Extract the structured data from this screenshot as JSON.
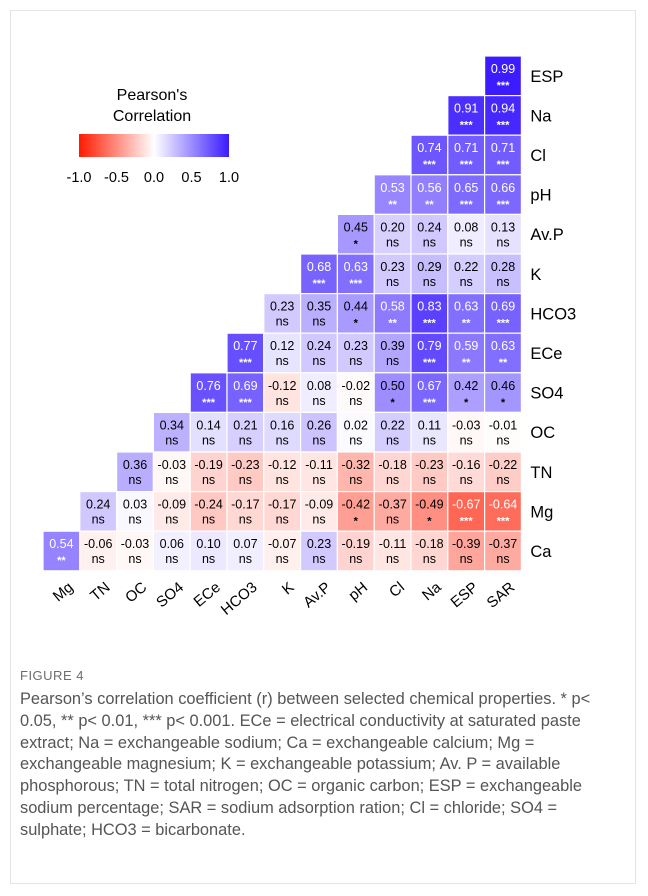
{
  "chart_data": {
    "type": "heatmap",
    "legend": {
      "title_line1": "Pearson's",
      "title_line2": "Correlation",
      "ticks": [
        "-1.0",
        "-0.5",
        "0.0",
        "0.5",
        "1.0"
      ],
      "colors": {
        "negative": "#ff1a00",
        "zero": "#ffffff",
        "positive": "#3a1aff"
      },
      "range": [
        -1.0,
        1.0
      ]
    },
    "columns": [
      "Mg",
      "TN",
      "OC",
      "SO4",
      "ECe",
      "HCO3",
      "K",
      "Av.P",
      "pH",
      "Cl",
      "Na",
      "ESP",
      "SAR"
    ],
    "rows": [
      {
        "label": "ESP",
        "cells": [
          {
            "col": 12,
            "v": "0.99",
            "s": "***"
          }
        ]
      },
      {
        "label": "Na",
        "cells": [
          {
            "col": 11,
            "v": "0.91",
            "s": "***"
          },
          {
            "col": 12,
            "v": "0.94",
            "s": "***"
          }
        ]
      },
      {
        "label": "Cl",
        "cells": [
          {
            "col": 10,
            "v": "0.74",
            "s": "***"
          },
          {
            "col": 11,
            "v": "0.71",
            "s": "***"
          },
          {
            "col": 12,
            "v": "0.71",
            "s": "***"
          }
        ]
      },
      {
        "label": "pH",
        "cells": [
          {
            "col": 9,
            "v": "0.53",
            "s": "**"
          },
          {
            "col": 10,
            "v": "0.56",
            "s": "**"
          },
          {
            "col": 11,
            "v": "0.65",
            "s": "***"
          },
          {
            "col": 12,
            "v": "0.66",
            "s": "***"
          }
        ]
      },
      {
        "label": "Av.P",
        "cells": [
          {
            "col": 8,
            "v": "0.45",
            "s": "*"
          },
          {
            "col": 9,
            "v": "0.20",
            "s": "ns"
          },
          {
            "col": 10,
            "v": "0.24",
            "s": "ns"
          },
          {
            "col": 11,
            "v": "0.08",
            "s": "ns"
          },
          {
            "col": 12,
            "v": "0.13",
            "s": "ns"
          }
        ]
      },
      {
        "label": "K",
        "cells": [
          {
            "col": 7,
            "v": "0.68",
            "s": "***"
          },
          {
            "col": 8,
            "v": "0.63",
            "s": "***"
          },
          {
            "col": 9,
            "v": "0.23",
            "s": "ns"
          },
          {
            "col": 10,
            "v": "0.29",
            "s": "ns"
          },
          {
            "col": 11,
            "v": "0.22",
            "s": "ns"
          },
          {
            "col": 12,
            "v": "0.28",
            "s": "ns"
          }
        ]
      },
      {
        "label": "HCO3",
        "cells": [
          {
            "col": 6,
            "v": "0.23",
            "s": "ns"
          },
          {
            "col": 7,
            "v": "0.35",
            "s": "ns"
          },
          {
            "col": 8,
            "v": "0.44",
            "s": "*"
          },
          {
            "col": 9,
            "v": "0.58",
            "s": "**"
          },
          {
            "col": 10,
            "v": "0.83",
            "s": "***"
          },
          {
            "col": 11,
            "v": "0.63",
            "s": "**"
          },
          {
            "col": 12,
            "v": "0.69",
            "s": "***"
          }
        ]
      },
      {
        "label": "ECe",
        "cells": [
          {
            "col": 5,
            "v": "0.77",
            "s": "***"
          },
          {
            "col": 6,
            "v": "0.12",
            "s": "ns"
          },
          {
            "col": 7,
            "v": "0.24",
            "s": "ns"
          },
          {
            "col": 8,
            "v": "0.23",
            "s": "ns"
          },
          {
            "col": 9,
            "v": "0.39",
            "s": "ns"
          },
          {
            "col": 10,
            "v": "0.79",
            "s": "***"
          },
          {
            "col": 11,
            "v": "0.59",
            "s": "**"
          },
          {
            "col": 12,
            "v": "0.63",
            "s": "**"
          }
        ]
      },
      {
        "label": "SO4",
        "cells": [
          {
            "col": 4,
            "v": "0.76",
            "s": "***"
          },
          {
            "col": 5,
            "v": "0.69",
            "s": "***"
          },
          {
            "col": 6,
            "v": "-0.12",
            "s": "ns"
          },
          {
            "col": 7,
            "v": "0.08",
            "s": "ns"
          },
          {
            "col": 8,
            "v": "-0.02",
            "s": "ns"
          },
          {
            "col": 9,
            "v": "0.50",
            "s": "*"
          },
          {
            "col": 10,
            "v": "0.67",
            "s": "***"
          },
          {
            "col": 11,
            "v": "0.42",
            "s": "*"
          },
          {
            "col": 12,
            "v": "0.46",
            "s": "*"
          }
        ]
      },
      {
        "label": "OC",
        "cells": [
          {
            "col": 3,
            "v": "0.34",
            "s": "ns"
          },
          {
            "col": 4,
            "v": "0.14",
            "s": "ns"
          },
          {
            "col": 5,
            "v": "0.21",
            "s": "ns"
          },
          {
            "col": 6,
            "v": "0.16",
            "s": "ns"
          },
          {
            "col": 7,
            "v": "0.26",
            "s": "ns"
          },
          {
            "col": 8,
            "v": "0.02",
            "s": "ns"
          },
          {
            "col": 9,
            "v": "0.22",
            "s": "ns"
          },
          {
            "col": 10,
            "v": "0.11",
            "s": "ns"
          },
          {
            "col": 11,
            "v": "-0.03",
            "s": "ns"
          },
          {
            "col": 12,
            "v": "-0.01",
            "s": "ns"
          }
        ]
      },
      {
        "label": "TN",
        "cells": [
          {
            "col": 2,
            "v": "0.36",
            "s": "ns"
          },
          {
            "col": 3,
            "v": "-0.03",
            "s": "ns"
          },
          {
            "col": 4,
            "v": "-0.19",
            "s": "ns"
          },
          {
            "col": 5,
            "v": "-0.23",
            "s": "ns"
          },
          {
            "col": 6,
            "v": "-0.12",
            "s": "ns"
          },
          {
            "col": 7,
            "v": "-0.11",
            "s": "ns"
          },
          {
            "col": 8,
            "v": "-0.32",
            "s": "ns"
          },
          {
            "col": 9,
            "v": "-0.18",
            "s": "ns"
          },
          {
            "col": 10,
            "v": "-0.23",
            "s": "ns"
          },
          {
            "col": 11,
            "v": "-0.16",
            "s": "ns"
          },
          {
            "col": 12,
            "v": "-0.22",
            "s": "ns"
          }
        ]
      },
      {
        "label": "Mg",
        "cells": [
          {
            "col": 1,
            "v": "0.24",
            "s": "ns"
          },
          {
            "col": 2,
            "v": "0.03",
            "s": "ns"
          },
          {
            "col": 3,
            "v": "-0.09",
            "s": "ns"
          },
          {
            "col": 4,
            "v": "-0.24",
            "s": "ns"
          },
          {
            "col": 5,
            "v": "-0.17",
            "s": "ns"
          },
          {
            "col": 6,
            "v": "-0.17",
            "s": "ns"
          },
          {
            "col": 7,
            "v": "-0.09",
            "s": "ns"
          },
          {
            "col": 8,
            "v": "-0.42",
            "s": "*"
          },
          {
            "col": 9,
            "v": "-0.37",
            "s": "ns"
          },
          {
            "col": 10,
            "v": "-0.49",
            "s": "*"
          },
          {
            "col": 11,
            "v": "-0.67",
            "s": "***"
          },
          {
            "col": 12,
            "v": "-0.64",
            "s": "***"
          }
        ]
      },
      {
        "label": "Ca",
        "cells": [
          {
            "col": 0,
            "v": "0.54",
            "s": "**"
          },
          {
            "col": 1,
            "v": "-0.06",
            "s": "ns"
          },
          {
            "col": 2,
            "v": "-0.03",
            "s": "ns"
          },
          {
            "col": 3,
            "v": "0.06",
            "s": "ns"
          },
          {
            "col": 4,
            "v": "0.10",
            "s": "ns"
          },
          {
            "col": 5,
            "v": "0.07",
            "s": "ns"
          },
          {
            "col": 6,
            "v": "-0.07",
            "s": "ns"
          },
          {
            "col": 7,
            "v": "0.23",
            "s": "ns"
          },
          {
            "col": 8,
            "v": "-0.19",
            "s": "ns"
          },
          {
            "col": 9,
            "v": "-0.11",
            "s": "ns"
          },
          {
            "col": 10,
            "v": "-0.18",
            "s": "ns"
          },
          {
            "col": 11,
            "v": "-0.39",
            "s": "ns"
          },
          {
            "col": 12,
            "v": "-0.37",
            "s": "ns"
          }
        ]
      }
    ]
  },
  "figure": {
    "label": "FIGURE 4",
    "caption": "Pearson’s correlation coefficient (r) between selected chemical properties. * p< 0.05, ** p< 0.01, *** p< 0.001. ECe = electrical conductivity at saturated paste extract; Na = exchangeable sodium; Ca = exchangeable calcium; Mg = exchangeable magnesium; K = exchangeable potassium; Av. P = available phosphorous; TN = total nitrogen; OC = organic carbon; ESP = exchangeable sodium percentage; SAR = sodium adsorption ration; Cl = chloride; SO4 = sulphate; HCO3 = bicarbonate."
  }
}
